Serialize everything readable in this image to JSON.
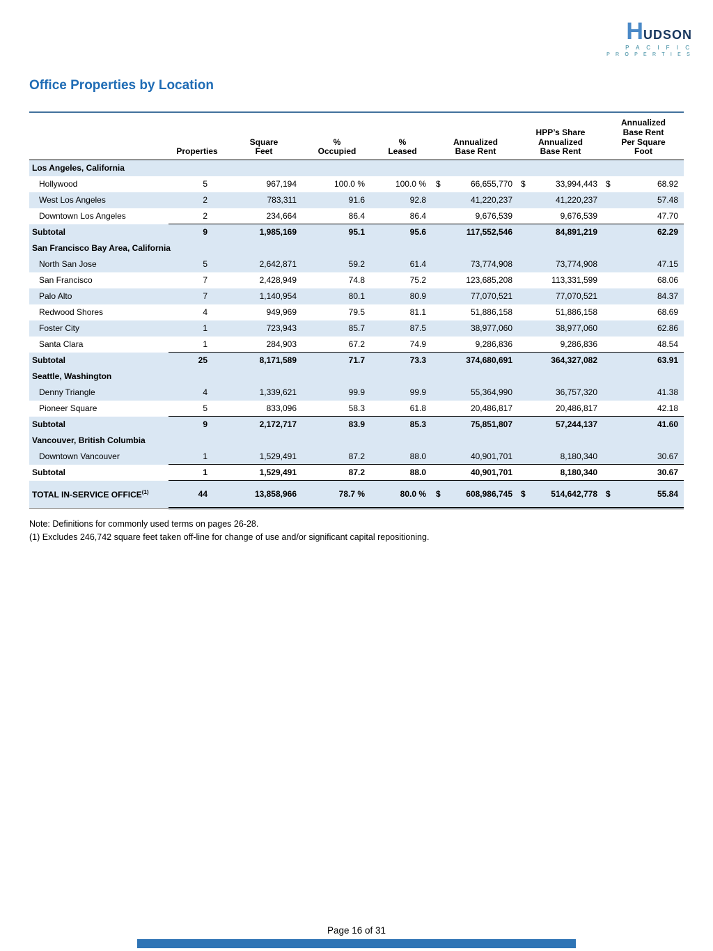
{
  "logo": {
    "word1_initial": "H",
    "word1_rest": "UDSON",
    "line2": "P A C I F I C",
    "line3": "P R O P E R T I E S"
  },
  "page": {
    "title": "Office Properties by Location",
    "footer": "Page 16 of 31",
    "notes": [
      "Note: Definitions for commonly used terms on pages 26-28.",
      "(1) Excludes 246,742 square feet taken off-line for change of use and/or significant capital repositioning."
    ]
  },
  "colors": {
    "title_blue": "#1F6CB5",
    "row_shade": "#DAE7F3",
    "rule_blue": "#41719C",
    "footer_bar_blue": "#2E74B5"
  },
  "table": {
    "headers": {
      "location": "",
      "properties": "Properties",
      "sqft": "Square\nFeet",
      "occupied": "%\nOccupied",
      "leased": "%\nLeased",
      "abr": "Annualized\nBase Rent",
      "hpp_abr": "HPP’s Share\nAnnualized\nBase Rent",
      "psf": "Annualized\nBase Rent\nPer Square\nFoot"
    },
    "rows": [
      {
        "type": "section",
        "label": "Los Angeles, California"
      },
      {
        "type": "city",
        "label": "Hollywood",
        "properties": "5",
        "sqft": "967,194",
        "occupied": "100.0 %",
        "leased": "100.0 %",
        "abr": "66,655,770",
        "hpp_abr": "33,994,443",
        "psf": "68.92",
        "dollar": true,
        "shaded": false,
        "rule_below": false
      },
      {
        "type": "city",
        "label": "West Los Angeles",
        "properties": "2",
        "sqft": "783,311",
        "occupied": "91.6",
        "leased": "92.8",
        "abr": "41,220,237",
        "hpp_abr": "41,220,237",
        "psf": "57.48",
        "dollar": false,
        "shaded": true,
        "rule_below": false
      },
      {
        "type": "city",
        "label": "Downtown Los Angeles",
        "properties": "2",
        "sqft": "234,664",
        "occupied": "86.4",
        "leased": "86.4",
        "abr": "9,676,539",
        "hpp_abr": "9,676,539",
        "psf": "47.70",
        "dollar": false,
        "shaded": false,
        "rule_below": true
      },
      {
        "type": "subtotal",
        "label": "Subtotal",
        "properties": "9",
        "sqft": "1,985,169",
        "occupied": "95.1",
        "leased": "95.6",
        "abr": "117,552,546",
        "hpp_abr": "84,891,219",
        "psf": "62.29",
        "dollar": false,
        "shaded": true,
        "rule_below": false
      },
      {
        "type": "section",
        "label": "San Francisco Bay Area, California"
      },
      {
        "type": "city",
        "label": "North San Jose",
        "properties": "5",
        "sqft": "2,642,871",
        "occupied": "59.2",
        "leased": "61.4",
        "abr": "73,774,908",
        "hpp_abr": "73,774,908",
        "psf": "47.15",
        "dollar": false,
        "shaded": true,
        "rule_below": false
      },
      {
        "type": "city",
        "label": "San Francisco",
        "properties": "7",
        "sqft": "2,428,949",
        "occupied": "74.8",
        "leased": "75.2",
        "abr": "123,685,208",
        "hpp_abr": "113,331,599",
        "psf": "68.06",
        "dollar": false,
        "shaded": false,
        "rule_below": false
      },
      {
        "type": "city",
        "label": "Palo Alto",
        "properties": "7",
        "sqft": "1,140,954",
        "occupied": "80.1",
        "leased": "80.9",
        "abr": "77,070,521",
        "hpp_abr": "77,070,521",
        "psf": "84.37",
        "dollar": false,
        "shaded": true,
        "rule_below": false
      },
      {
        "type": "city",
        "label": "Redwood Shores",
        "properties": "4",
        "sqft": "949,969",
        "occupied": "79.5",
        "leased": "81.1",
        "abr": "51,886,158",
        "hpp_abr": "51,886,158",
        "psf": "68.69",
        "dollar": false,
        "shaded": false,
        "rule_below": false
      },
      {
        "type": "city",
        "label": "Foster City",
        "properties": "1",
        "sqft": "723,943",
        "occupied": "85.7",
        "leased": "87.5",
        "abr": "38,977,060",
        "hpp_abr": "38,977,060",
        "psf": "62.86",
        "dollar": false,
        "shaded": true,
        "rule_below": false
      },
      {
        "type": "city",
        "label": "Santa Clara",
        "properties": "1",
        "sqft": "284,903",
        "occupied": "67.2",
        "leased": "74.9",
        "abr": "9,286,836",
        "hpp_abr": "9,286,836",
        "psf": "48.54",
        "dollar": false,
        "shaded": false,
        "rule_below": true
      },
      {
        "type": "subtotal",
        "label": "Subtotal",
        "properties": "25",
        "sqft": "8,171,589",
        "occupied": "71.7",
        "leased": "73.3",
        "abr": "374,680,691",
        "hpp_abr": "364,327,082",
        "psf": "63.91",
        "dollar": false,
        "shaded": true,
        "rule_below": false
      },
      {
        "type": "section",
        "label": "Seattle, Washington"
      },
      {
        "type": "city",
        "label": "Denny Triangle",
        "properties": "4",
        "sqft": "1,339,621",
        "occupied": "99.9",
        "leased": "99.9",
        "abr": "55,364,990",
        "hpp_abr": "36,757,320",
        "psf": "41.38",
        "dollar": false,
        "shaded": true,
        "rule_below": false
      },
      {
        "type": "city",
        "label": "Pioneer Square",
        "properties": "5",
        "sqft": "833,096",
        "occupied": "58.3",
        "leased": "61.8",
        "abr": "20,486,817",
        "hpp_abr": "20,486,817",
        "psf": "42.18",
        "dollar": false,
        "shaded": false,
        "rule_below": true
      },
      {
        "type": "subtotal",
        "label": "Subtotal",
        "properties": "9",
        "sqft": "2,172,717",
        "occupied": "83.9",
        "leased": "85.3",
        "abr": "75,851,807",
        "hpp_abr": "57,244,137",
        "psf": "41.60",
        "dollar": false,
        "shaded": true,
        "rule_below": false
      },
      {
        "type": "section",
        "label": "Vancouver, British Columbia"
      },
      {
        "type": "city",
        "label": "Downtown Vancouver",
        "properties": "1",
        "sqft": "1,529,491",
        "occupied": "87.2",
        "leased": "88.0",
        "abr": "40,901,701",
        "hpp_abr": "8,180,340",
        "psf": "30.67",
        "dollar": false,
        "shaded": true,
        "rule_below": true
      },
      {
        "type": "subtotal",
        "label": "Subtotal",
        "properties": "1",
        "sqft": "1,529,491",
        "occupied": "87.2",
        "leased": "88.0",
        "abr": "40,901,701",
        "hpp_abr": "8,180,340",
        "psf": "30.67",
        "dollar": false,
        "shaded": false,
        "rule_below": true
      },
      {
        "type": "total",
        "label": "TOTAL IN-SERVICE OFFICE",
        "sup": "(1)",
        "properties": "44",
        "sqft": "13,858,966",
        "occupied": "78.7 %",
        "leased": "80.0 %",
        "abr": "608,986,745",
        "hpp_abr": "514,642,778",
        "psf": "55.84",
        "dollar": true,
        "shaded": true,
        "rule_below": false
      }
    ]
  }
}
